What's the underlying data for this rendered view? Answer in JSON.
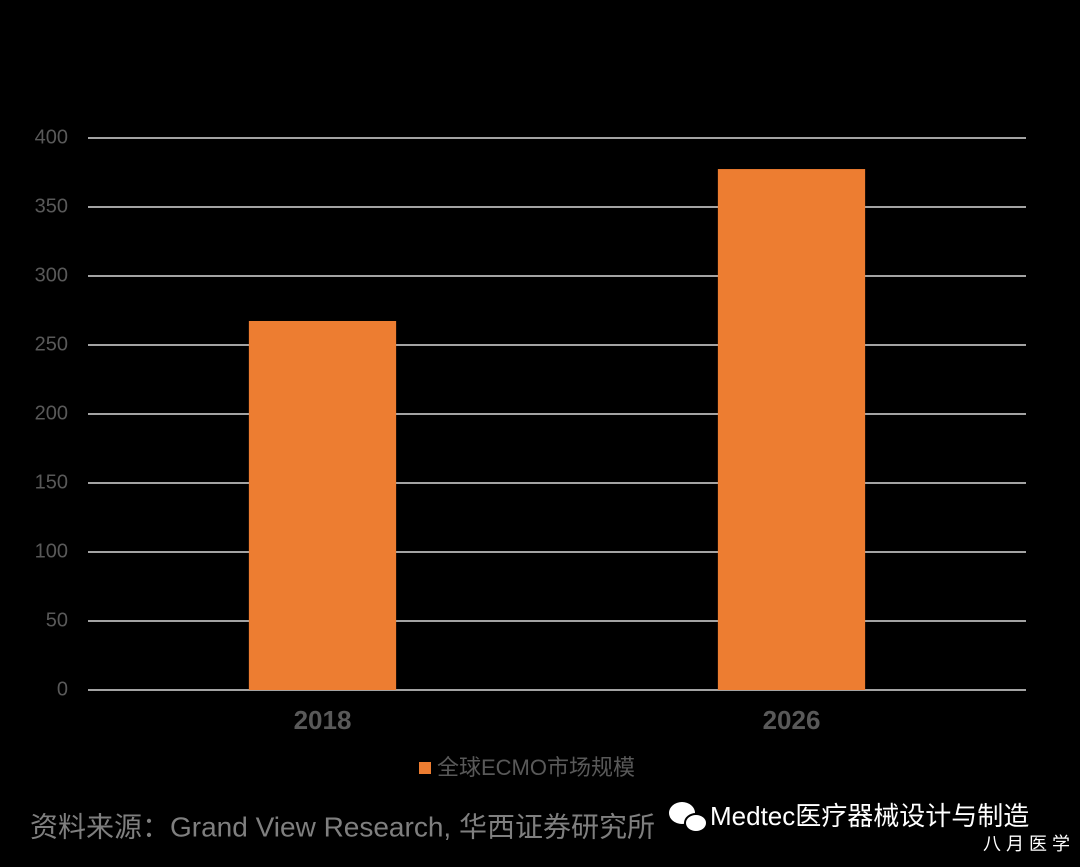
{
  "chart_data": {
    "type": "bar",
    "categories": [
      "2018",
      "2026"
    ],
    "series": [
      {
        "name": "全球ECMO市场规模",
        "color": "#ed7d31",
        "values": [
          267.4,
          377.5
        ]
      }
    ],
    "ylim": [
      0,
      400
    ],
    "yticks": [
      0,
      50,
      100,
      150,
      200,
      250,
      300,
      350,
      400
    ],
    "grid": true,
    "legend": "bottom",
    "source": "资料来源：Grand View Research, 华西证券研究所"
  },
  "watermark": {
    "account": "Medtec医疗器械设计与制造",
    "brand": "八 月 医 学"
  }
}
